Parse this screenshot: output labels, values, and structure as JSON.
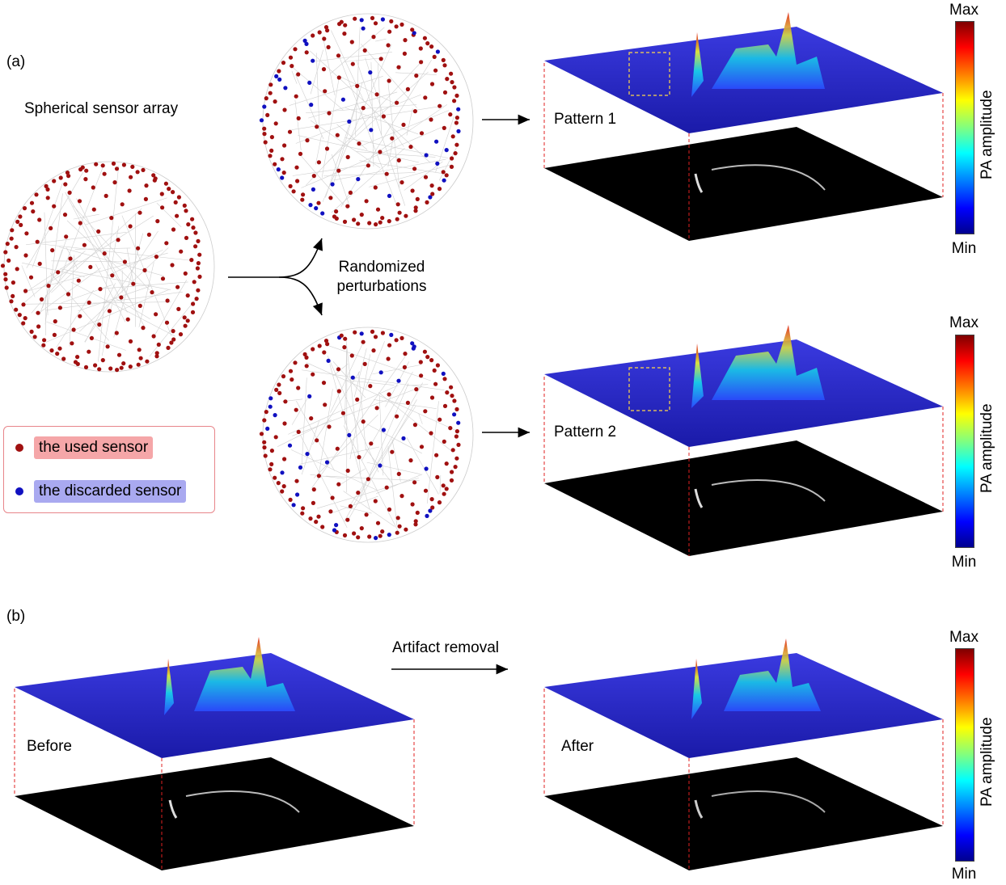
{
  "panel_a": {
    "label": "(a)",
    "array_title": "Spherical sensor array",
    "perturb_label_line1": "Randomized",
    "perturb_label_line2": "perturbations",
    "pattern1": "Pattern 1",
    "pattern2": "Pattern 2"
  },
  "legend": {
    "used": "the used sensor",
    "discarded": "the discarded sensor",
    "used_color": "#a01010",
    "discarded_color": "#1010c0",
    "used_bg": "#f5a6a8",
    "discarded_bg": "#a9a9f0"
  },
  "panel_b": {
    "label": "(b)",
    "arrow_label": "Artifact removal",
    "before": "Before",
    "after": "After"
  },
  "colorbar": {
    "max": "Max",
    "min": "Min",
    "title": "PA amplitude"
  }
}
